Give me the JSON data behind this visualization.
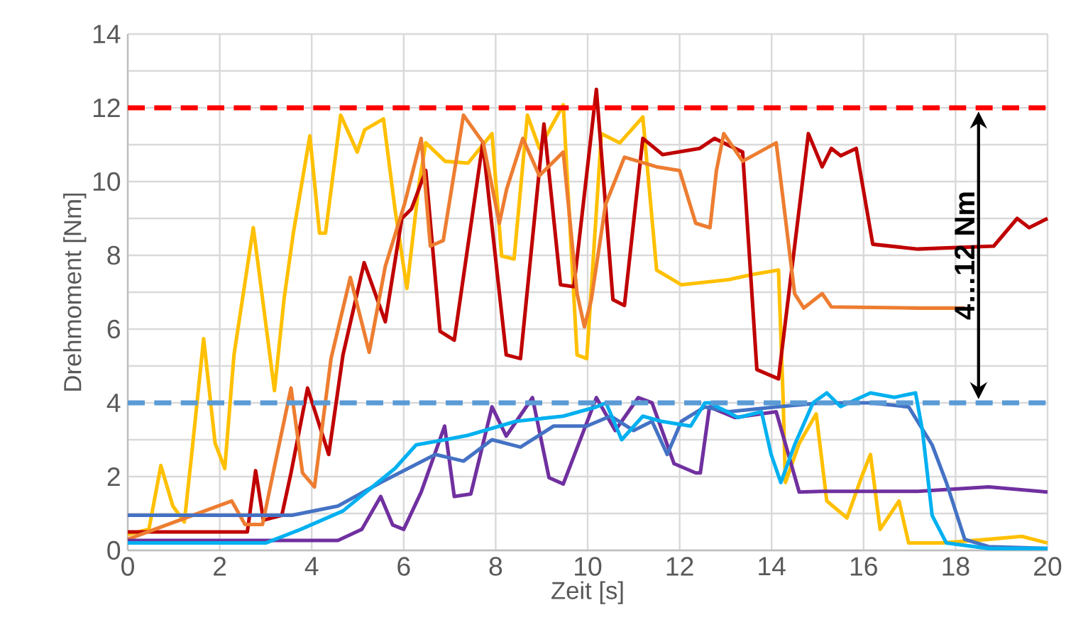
{
  "chart_data": {
    "type": "line",
    "xlabel": "Zeit [s]",
    "ylabel": "Drehmoment [Nm]",
    "xlim": [
      0,
      20
    ],
    "ylim": [
      0,
      14
    ],
    "xticks": [
      0,
      2,
      4,
      6,
      8,
      10,
      12,
      14,
      16,
      18,
      20
    ],
    "yticks": [
      0,
      {
        "value": 1,
        "label": null
      },
      2,
      {
        "value": 3,
        "label": null
      },
      4,
      {
        "value": 5,
        "label": null
      },
      6,
      {
        "value": 7,
        "label": null
      },
      8,
      {
        "value": 9,
        "label": null
      },
      10,
      {
        "value": 11,
        "label": null
      },
      12,
      {
        "value": 13,
        "label": null
      },
      14
    ],
    "grid": true,
    "marker": "none",
    "line_style": "solid",
    "ref_lines": [
      {
        "axis": "y",
        "value": 12,
        "color": "#ff0000",
        "line_style": "dashed"
      },
      {
        "axis": "y",
        "value": 4,
        "color": "#5b9bd5",
        "line_style": "dashed"
      }
    ],
    "annotations": [
      {
        "text": "4…12 Nm",
        "x": 18.5,
        "y": 8
      }
    ],
    "series": [
      {
        "color": "#ffc000",
        "x": [
          0,
          0.46,
          0.72,
          0.98,
          1.23,
          1.39,
          1.65,
          1.9,
          2.11,
          2.31,
          2.73,
          3.19,
          3.4,
          3.6,
          3.96,
          4.17,
          4.3,
          4.63,
          4.99,
          5.15,
          5.56,
          5.81,
          6.07,
          6.33,
          6.48,
          6.9,
          7.4,
          7.92,
          8.13,
          8.4,
          8.69,
          8.95,
          9.47,
          9.77,
          9.98,
          10.3,
          10.7,
          11.2,
          11.5,
          12.04,
          13.07,
          13.58,
          14.15,
          14.25,
          14.3,
          14.6,
          14.97,
          15.2,
          15.64,
          15.95,
          16.15,
          16.36,
          16.77,
          16.98,
          17.7,
          18.72,
          19.44,
          20
        ],
        "values": [
          0.43,
          0.57,
          2.3,
          1.2,
          0.77,
          2.6,
          5.74,
          2.9,
          2.22,
          5.3,
          8.75,
          4.33,
          6.83,
          8.6,
          11.24,
          8.6,
          8.6,
          11.8,
          10.8,
          11.4,
          11.7,
          9.26,
          7.1,
          9.9,
          11.05,
          10.55,
          10.5,
          11.3,
          7.98,
          7.9,
          11.8,
          10.9,
          12.08,
          5.3,
          5.2,
          11.3,
          11.05,
          11.75,
          7.6,
          7.2,
          7.34,
          7.48,
          7.6,
          4.14,
          1.84,
          2.9,
          3.7,
          1.34,
          0.88,
          1.97,
          2.6,
          0.57,
          1.34,
          0.2,
          0.2,
          0.3,
          0.38,
          0.2
        ]
      },
      {
        "color": "#c00000",
        "x": [
          0,
          2.6,
          2.78,
          2.95,
          3.35,
          3.55,
          3.91,
          4.37,
          4.68,
          5.14,
          5.6,
          5.96,
          6.17,
          6.48,
          6.79,
          7.1,
          7.72,
          8.23,
          8.54,
          9.05,
          9.41,
          9.7,
          10.19,
          10.55,
          10.8,
          11.2,
          11.63,
          12.44,
          12.76,
          13.37,
          13.68,
          14.15,
          14.3,
          14.8,
          15.1,
          15.3,
          15.5,
          15.84,
          16.2,
          17.18,
          18.83,
          19.34,
          19.6,
          20
        ],
        "values": [
          0.5,
          0.5,
          2.16,
          0.82,
          0.95,
          2.1,
          4.4,
          2.6,
          5.3,
          7.8,
          6.2,
          9.0,
          9.26,
          10.3,
          5.94,
          5.7,
          11.05,
          5.3,
          5.2,
          11.56,
          7.2,
          7.15,
          12.5,
          6.8,
          6.64,
          11.17,
          10.73,
          10.9,
          11.17,
          10.8,
          4.9,
          4.65,
          6.2,
          11.3,
          10.4,
          10.9,
          10.7,
          10.9,
          8.3,
          8.17,
          8.25,
          9.0,
          8.75,
          9.0
        ]
      },
      {
        "color": "#ed7d31",
        "x": [
          0,
          2.26,
          2.55,
          2.93,
          3.14,
          3.55,
          3.8,
          4.06,
          4.42,
          4.84,
          5.25,
          5.6,
          6.02,
          6.38,
          6.58,
          6.86,
          7.3,
          7.73,
          8.08,
          8.24,
          8.59,
          8.95,
          9.47,
          9.77,
          9.93,
          10.08,
          10.39,
          10.8,
          11.5,
          12.0,
          12.35,
          12.66,
          12.8,
          12.96,
          13.37,
          14.1,
          14.5,
          14.7,
          15.1,
          15.3,
          17.18,
          18.2
        ],
        "values": [
          0.3,
          1.34,
          0.7,
          0.7,
          1.97,
          4.4,
          2.1,
          1.72,
          5.2,
          7.4,
          5.37,
          7.7,
          9.4,
          11.17,
          8.25,
          8.4,
          11.8,
          11.05,
          8.87,
          9.8,
          11.17,
          10.16,
          10.8,
          6.96,
          6.06,
          6.8,
          9.38,
          10.66,
          10.4,
          10.3,
          8.87,
          8.75,
          10.3,
          11.3,
          10.55,
          11.05,
          6.96,
          6.57,
          6.96,
          6.6,
          6.57,
          6.57
        ]
      },
      {
        "color": "#7030a0",
        "x": [
          0,
          4.57,
          5.09,
          5.5,
          5.76,
          6.0,
          6.38,
          6.89,
          7.1,
          7.46,
          7.92,
          8.23,
          8.8,
          9.16,
          9.47,
          10.19,
          10.6,
          11.1,
          11.4,
          11.88,
          12.35,
          12.45,
          12.65,
          13.2,
          14.1,
          14.6,
          15.1,
          17.18,
          18.72,
          20
        ],
        "values": [
          0.27,
          0.27,
          0.57,
          1.46,
          0.69,
          0.57,
          1.58,
          3.37,
          1.46,
          1.53,
          3.89,
          3.1,
          4.14,
          1.97,
          1.8,
          4.14,
          3.25,
          4.14,
          4.0,
          2.35,
          2.1,
          2.1,
          3.89,
          3.6,
          3.76,
          1.58,
          1.6,
          1.6,
          1.72,
          1.58
        ]
      },
      {
        "color": "#4472c4",
        "x": [
          0,
          3.57,
          4.57,
          5.5,
          6.69,
          7.3,
          7.92,
          8.54,
          9.26,
          9.98,
          10.5,
          11.0,
          11.4,
          11.73,
          12.04,
          12.55,
          13.07,
          14.1,
          15.1,
          16.15,
          16.98,
          17.49,
          17.8,
          18.2,
          18.72,
          20
        ],
        "values": [
          0.95,
          0.95,
          1.2,
          1.84,
          2.6,
          2.42,
          3.0,
          2.8,
          3.37,
          3.37,
          3.64,
          3.25,
          3.5,
          2.6,
          3.5,
          3.89,
          3.76,
          3.89,
          4.0,
          4.0,
          3.89,
          2.86,
          1.84,
          0.3,
          0.1,
          0.05
        ]
      },
      {
        "color": "#00b0f0",
        "x": [
          0,
          3.0,
          3.76,
          4.68,
          5.81,
          6.27,
          6.9,
          7.4,
          8.44,
          9.47,
          10.19,
          10.4,
          10.74,
          11.2,
          11.6,
          12.24,
          12.55,
          12.66,
          13.27,
          13.78,
          13.99,
          14.2,
          14.5,
          14.9,
          15.2,
          15.5,
          16.15,
          16.67,
          17.13,
          17.28,
          17.49,
          17.8,
          18.72,
          20
        ],
        "values": [
          0.2,
          0.2,
          0.57,
          1.07,
          2.22,
          2.86,
          3.0,
          3.12,
          3.5,
          3.64,
          3.89,
          4.0,
          3.0,
          3.64,
          3.5,
          3.37,
          4.0,
          4.0,
          3.6,
          3.76,
          2.6,
          1.84,
          2.86,
          4.0,
          4.27,
          3.9,
          4.27,
          4.15,
          4.27,
          3.25,
          0.95,
          0.2,
          0.05,
          0.05
        ]
      }
    ]
  }
}
